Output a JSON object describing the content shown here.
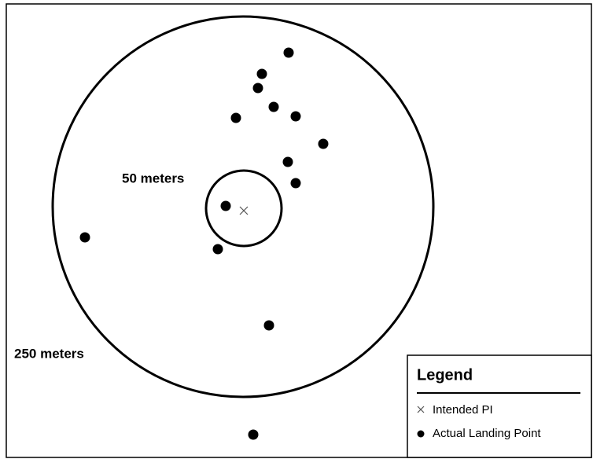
{
  "labels": {
    "inner_ring": "50 meters",
    "outer_ring": "250 meters"
  },
  "legend": {
    "title": "Legend",
    "items": [
      "Intended PI",
      "Actual Landing Point"
    ]
  }
}
